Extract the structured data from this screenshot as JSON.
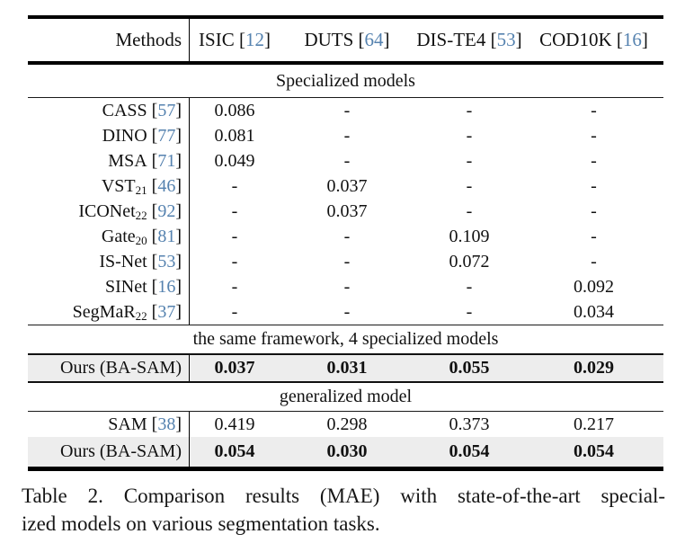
{
  "page": {
    "background": "#ffffff",
    "text_color": "#111111",
    "citation_color": "#5582af",
    "highlight_row_color": "#ededed"
  },
  "table": {
    "metric": "MAE",
    "header": {
      "methods_label": "Methods",
      "columns": [
        {
          "name": "ISIC",
          "cite": "12"
        },
        {
          "name": "DUTS",
          "cite": "64"
        },
        {
          "name": "DIS-TE4",
          "cite": "53"
        },
        {
          "name": "COD10K",
          "cite": "16"
        }
      ]
    },
    "rows": [
      {
        "type": "section",
        "text": "Specialized models"
      },
      {
        "type": "model",
        "name": "CASS",
        "sub": "",
        "cite": "57",
        "bold": false,
        "highlight": false,
        "values": [
          "0.086",
          "-",
          "-",
          "-"
        ]
      },
      {
        "type": "model",
        "name": "DINO",
        "sub": "",
        "cite": "77",
        "bold": false,
        "highlight": false,
        "values": [
          "0.081",
          "-",
          "-",
          "-"
        ]
      },
      {
        "type": "model",
        "name": "MSA",
        "sub": "",
        "cite": "71",
        "bold": false,
        "highlight": false,
        "values": [
          "0.049",
          "-",
          "-",
          "-"
        ]
      },
      {
        "type": "model",
        "name": "VST",
        "sub": "21",
        "cite": "46",
        "bold": false,
        "highlight": false,
        "values": [
          "-",
          "0.037",
          "-",
          "-"
        ]
      },
      {
        "type": "model",
        "name": "ICONet",
        "sub": "22",
        "cite": "92",
        "bold": false,
        "highlight": false,
        "values": [
          "-",
          "0.037",
          "-",
          "-"
        ]
      },
      {
        "type": "model",
        "name": "Gate",
        "sub": "20",
        "cite": "81",
        "bold": false,
        "highlight": false,
        "values": [
          "-",
          "-",
          "0.109",
          "-"
        ]
      },
      {
        "type": "model",
        "name": "IS-Net",
        "sub": "",
        "cite": "53",
        "bold": false,
        "highlight": false,
        "values": [
          "-",
          "-",
          "0.072",
          "-"
        ]
      },
      {
        "type": "model",
        "name": "SINet",
        "sub": "",
        "cite": "16",
        "bold": false,
        "highlight": false,
        "values": [
          "-",
          "-",
          "-",
          "0.092"
        ]
      },
      {
        "type": "model",
        "name": "SegMaR",
        "sub": "22",
        "cite": "37",
        "bold": false,
        "highlight": false,
        "values": [
          "-",
          "-",
          "-",
          "0.034"
        ]
      },
      {
        "type": "section",
        "text": "the same framework, 4 specialized models"
      },
      {
        "type": "model",
        "name": "Ours (BA-SAM)",
        "sub": "",
        "cite": "",
        "bold": true,
        "highlight": true,
        "values": [
          "0.037",
          "0.031",
          "0.055",
          "0.029"
        ]
      },
      {
        "type": "section",
        "text": "generalized model"
      },
      {
        "type": "model",
        "name": "SAM",
        "sub": "",
        "cite": "38",
        "bold": false,
        "highlight": false,
        "values": [
          "0.419",
          "0.298",
          "0.373",
          "0.217"
        ]
      },
      {
        "type": "model",
        "name": "Ours (BA-SAM)",
        "sub": "",
        "cite": "",
        "bold": true,
        "highlight": true,
        "values": [
          "0.054",
          "0.030",
          "0.054",
          "0.054"
        ]
      }
    ]
  },
  "caption": {
    "line1": "Table 2.  Comparison results (MAE) with state-of-the-art special-",
    "line2": "ized models on various segmentation tasks."
  }
}
